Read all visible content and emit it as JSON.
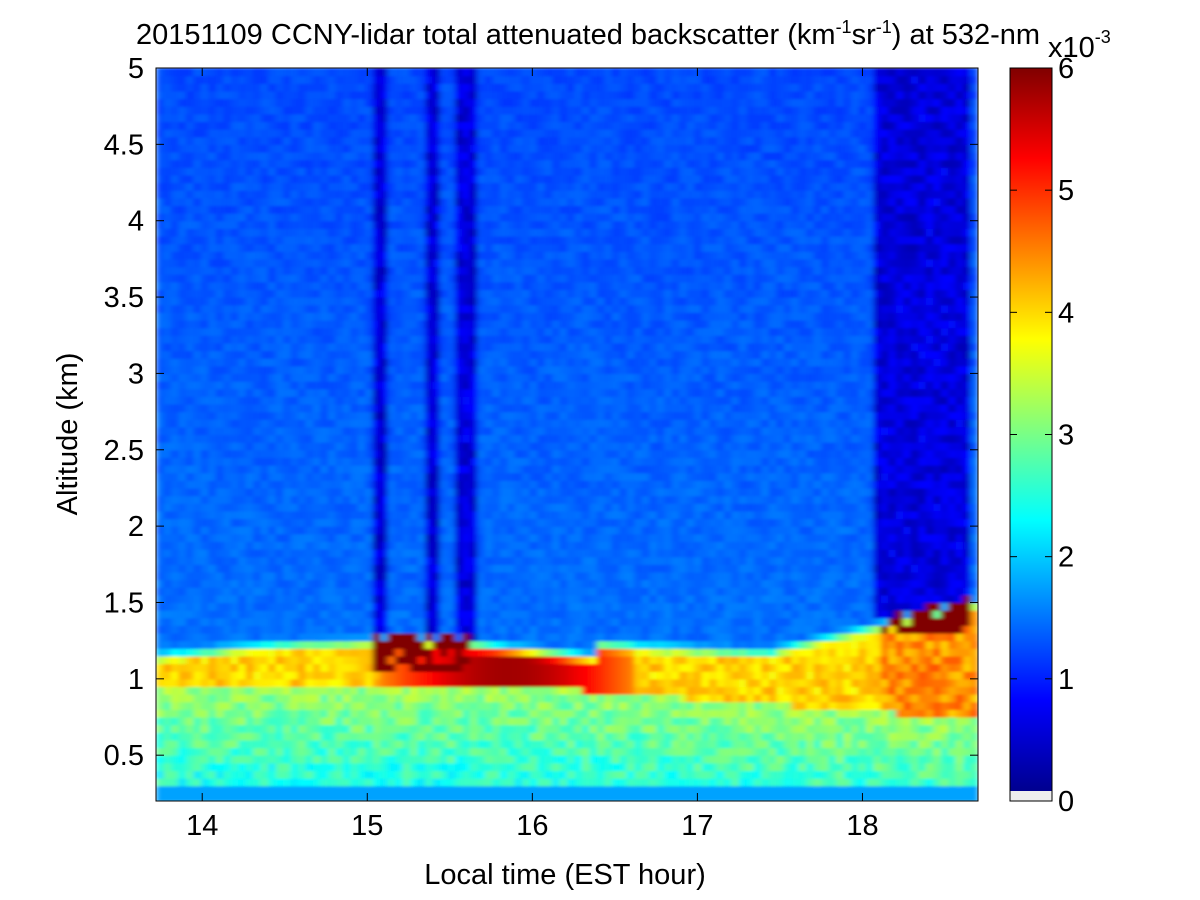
{
  "chart_data": {
    "type": "heatmap",
    "title": {
      "prefix": "20151109 CCNY-lidar total attenuated backscatter (km",
      "sup1": "-1",
      "mid": "sr",
      "sup2": "-1",
      "suffix": ") at 532-nm"
    },
    "xlabel": "Local time (EST hour)",
    "ylabel": "Altitude (km)",
    "xlim": [
      13.72,
      18.7
    ],
    "ylim": [
      0.2,
      5
    ],
    "xticks": [
      14,
      15,
      16,
      17,
      18
    ],
    "xtick_labels": [
      "14",
      "15",
      "16",
      "17",
      "18"
    ],
    "yticks": [
      0.5,
      1,
      1.5,
      2,
      2.5,
      3,
      3.5,
      4,
      4.5,
      5
    ],
    "ytick_labels": [
      "0.5",
      "1",
      "1.5",
      "2",
      "2.5",
      "3",
      "3.5",
      "4",
      "4.5",
      "5"
    ],
    "colormap": "jet",
    "colorbar": {
      "range": [
        0,
        6
      ],
      "ticks": [
        0,
        1,
        2,
        3,
        4,
        5,
        6
      ],
      "tick_labels": [
        "0",
        "1",
        "2",
        "3",
        "4",
        "5",
        "6"
      ],
      "multiplier_base": "x10",
      "multiplier_exp": "-3"
    },
    "grid": false,
    "description_points": [
      {
        "time": 14.0,
        "aerosol_layer_top_km": 1.2,
        "peak_value": 4.0
      },
      {
        "time": 15.0,
        "aerosol_layer_top_km": 1.3,
        "peak_value": 6.0
      },
      {
        "time": 16.0,
        "aerosol_layer_top_km": 1.25,
        "peak_value": 5.5
      },
      {
        "time": 17.0,
        "aerosol_layer_top_km": 1.2,
        "peak_value": 4.0
      },
      {
        "time": 18.0,
        "aerosol_layer_top_km": 1.4,
        "peak_value": 4.5
      },
      {
        "time": 18.6,
        "aerosol_layer_top_km": 1.55,
        "peak_value": 6.0
      }
    ]
  }
}
